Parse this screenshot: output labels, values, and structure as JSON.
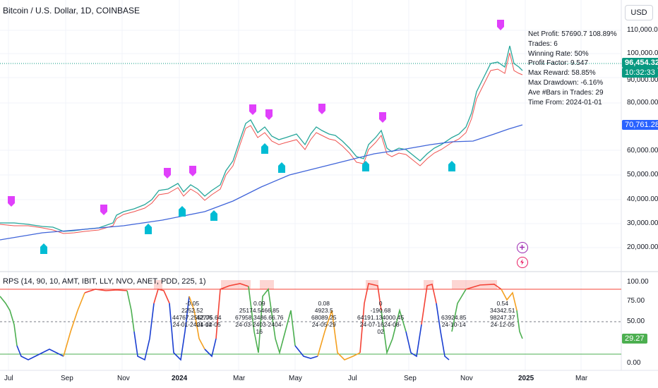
{
  "header": {
    "title": "Bitcoin / U.S. Dollar, 1D, COINBASE",
    "currency_button": "USD"
  },
  "stats": [
    "Net Profit: 57690.7  108.89%",
    "Trades: 6",
    "Winning Rate: 50%",
    "Profit Factor: 9.547",
    "Max Reward: 58.85%",
    "Max Drawdown: -6.16%",
    "Ave #Bars in Trades: 29",
    "Time From: 2024-01-01"
  ],
  "price_axis": {
    "labels": [
      "110,000.00",
      "100,000.00",
      "90,000.00",
      "80,000.00",
      "60,000.00",
      "50,000.00",
      "40,000.00",
      "30,000.00",
      "20,000.00"
    ],
    "last_price": "96,454.32",
    "countdown": "10:32:33",
    "ma_value": "70,761.28",
    "colors": {
      "last_price_bg": "#089981",
      "ma_bg": "#2962ff",
      "ma_line": "#3f64d9",
      "buy": "#00bcd4",
      "sell": "#e040fb"
    }
  },
  "indicator": {
    "title": "RPS (14, 90, 10, AMT, IBIT, LLY, NVO, ANET, PDD, 225, 1)",
    "axis_labels": [
      "100.00",
      "75.00",
      "50.00",
      "0.00"
    ],
    "current_value": "29.27",
    "annotations": [
      {
        "lines": [
          "-0.05",
          "2252.52",
          "44767.2552.06",
          "24-01-2401-14"
        ]
      },
      {
        "lines": [
          "",
          "",
          "42775.64",
          "24-02-05"
        ]
      },
      {
        "lines": [
          "0.09",
          "25174.5466.85",
          "67958.3486.66.76",
          "24-03-2403-2404-16"
        ]
      },
      {
        "lines": [
          "0.08",
          "4923.5",
          "68089.25",
          "24-05-29"
        ]
      },
      {
        "lines": [
          "0",
          "-190.68",
          "64191.134000.45",
          "24-07-1624-08-02"
        ]
      },
      {
        "lines": [
          "",
          "",
          "63924.85",
          "24-10-14"
        ]
      },
      {
        "lines": [
          "0.54",
          "34342.51",
          "98247.37",
          "24-12-05"
        ]
      }
    ]
  },
  "time_axis": {
    "labels": [
      "Jul",
      "Sep",
      "Nov",
      "2024",
      "Mar",
      "May",
      "Jul",
      "Sep",
      "Nov",
      "2025",
      "Mar"
    ],
    "bold": [
      "2024",
      "2025"
    ]
  }
}
